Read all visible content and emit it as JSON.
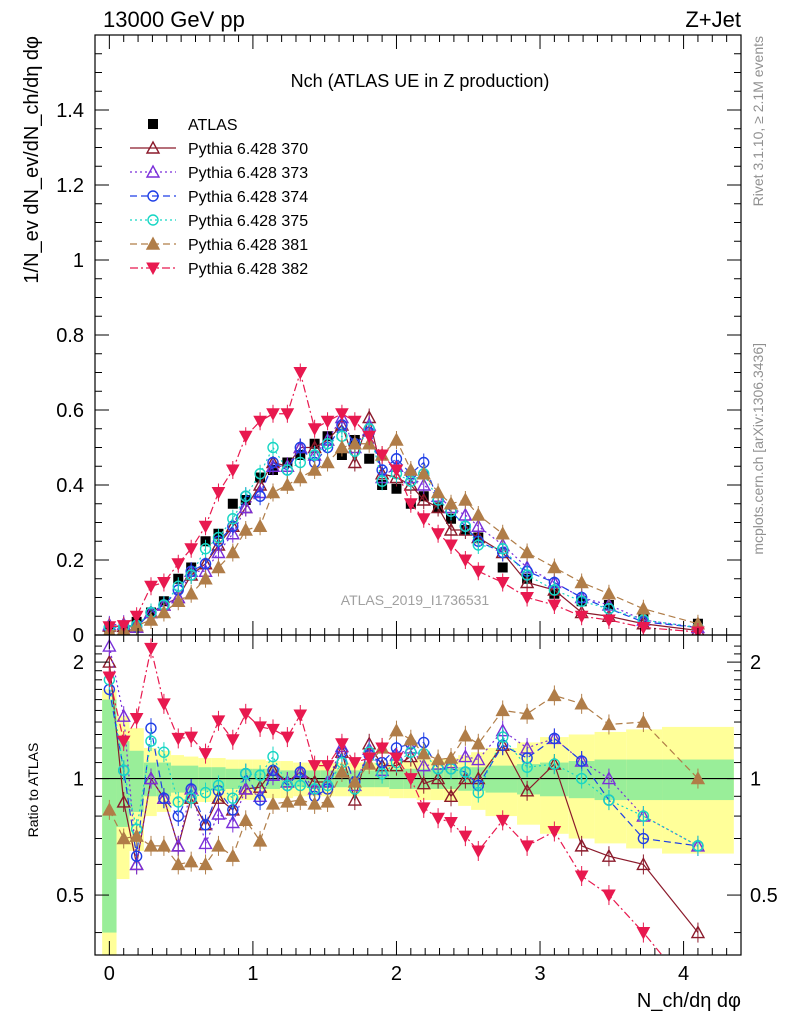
{
  "header": {
    "left": "13000 GeV pp",
    "right": "Z+Jet"
  },
  "side_labels": {
    "rivet": "Rivet 3.1.10, ≥ 2.1M events",
    "mcplots": "mcplots.cern.ch [arXiv:1306.3436]"
  },
  "colors": {
    "band_inner": "#99ee99",
    "band_outer": "#ffff99",
    "axes": "#000000"
  },
  "chart_data": [
    {
      "type": "scatter",
      "panel": "main",
      "title": "Nch (ATLAS UE in Z production)",
      "analysis_label": "ATLAS_2019_I1736531",
      "xlabel": "N_ch/dη dφ",
      "ylabel": "1/N_ev dN_ev/dN_ch/dη dφ",
      "xlim": [
        -0.1,
        4.4
      ],
      "ylim": [
        0,
        1.6
      ],
      "yticks": [
        0,
        0.2,
        0.4,
        0.6,
        0.8,
        1,
        1.2,
        1.4
      ],
      "ytick_labels": [
        "0",
        "0.2",
        "0.4",
        "0.6",
        "0.8",
        "1",
        "1.2",
        "1.4"
      ],
      "legend_position": "top-left",
      "x": [
        0.0,
        0.1,
        0.19,
        0.29,
        0.38,
        0.48,
        0.57,
        0.67,
        0.76,
        0.86,
        0.95,
        1.05,
        1.14,
        1.24,
        1.33,
        1.43,
        1.52,
        1.62,
        1.71,
        1.81,
        1.9,
        2.0,
        2.1,
        2.19,
        2.29,
        2.38,
        2.48,
        2.57,
        2.74,
        2.91,
        3.1,
        3.29,
        3.48,
        3.72,
        4.1
      ],
      "series": [
        {
          "name": "ATLAS",
          "color": "#000000",
          "marker": "square-filled",
          "line": "none",
          "values": [
            0.012,
            0.02,
            0.035,
            0.06,
            0.09,
            0.15,
            0.18,
            0.25,
            0.27,
            0.35,
            0.36,
            0.42,
            0.44,
            0.46,
            0.48,
            0.51,
            0.53,
            0.48,
            0.52,
            0.47,
            0.4,
            0.39,
            0.35,
            0.37,
            0.34,
            0.31,
            0.28,
            0.26,
            0.18,
            0.15,
            0.11,
            0.09,
            0.08,
            0.05,
            0.03
          ]
        },
        {
          "name": "Pythia 6.428 370",
          "color": "#8b1a2b",
          "marker": "triangle-open",
          "line": "solid",
          "values": [
            0.024,
            0.023,
            0.021,
            0.06,
            0.08,
            0.1,
            0.16,
            0.19,
            0.24,
            0.29,
            0.34,
            0.4,
            0.46,
            0.45,
            0.5,
            0.5,
            0.52,
            0.56,
            0.46,
            0.58,
            0.43,
            0.42,
            0.4,
            0.36,
            0.34,
            0.28,
            0.28,
            0.26,
            0.22,
            0.14,
            0.12,
            0.06,
            0.05,
            0.03,
            0.012
          ]
        },
        {
          "name": "Pythia 6.428 373",
          "color": "#7a2fd9",
          "marker": "triangle-open",
          "line": "dotted",
          "values": [
            0.027,
            0.029,
            0.021,
            0.06,
            0.08,
            0.1,
            0.17,
            0.17,
            0.22,
            0.27,
            0.34,
            0.38,
            0.45,
            0.45,
            0.5,
            0.48,
            0.52,
            0.58,
            0.5,
            0.56,
            0.42,
            0.45,
            0.42,
            0.4,
            0.37,
            0.34,
            0.32,
            0.29,
            0.24,
            0.18,
            0.14,
            0.1,
            0.08,
            0.04,
            0.02
          ]
        },
        {
          "name": "Pythia 6.428 374",
          "color": "#1f3fe6",
          "marker": "circle-open",
          "line": "dashed",
          "values": [
            0.02,
            0.021,
            0.022,
            0.06,
            0.08,
            0.12,
            0.17,
            0.19,
            0.25,
            0.29,
            0.37,
            0.37,
            0.46,
            0.44,
            0.5,
            0.46,
            0.5,
            0.56,
            0.51,
            0.54,
            0.44,
            0.47,
            0.43,
            0.46,
            0.36,
            0.33,
            0.29,
            0.25,
            0.22,
            0.17,
            0.14,
            0.1,
            0.07,
            0.035,
            0.02
          ]
        },
        {
          "name": "Pythia 6.428 375",
          "color": "#17d6c4",
          "marker": "circle-open",
          "line": "dotted",
          "values": [
            0.022,
            0.021,
            0.026,
            0.06,
            0.08,
            0.13,
            0.16,
            0.23,
            0.26,
            0.31,
            0.37,
            0.43,
            0.5,
            0.44,
            0.46,
            0.48,
            0.51,
            0.53,
            0.49,
            0.55,
            0.41,
            0.43,
            0.41,
            0.43,
            0.36,
            0.33,
            0.29,
            0.24,
            0.23,
            0.16,
            0.12,
            0.09,
            0.07,
            0.04,
            0.02
          ]
        },
        {
          "name": "Pythia 6.428 381",
          "color": "#b07d48",
          "marker": "triangle-filled",
          "line": "dashed",
          "values": [
            0.01,
            0.014,
            0.025,
            0.04,
            0.06,
            0.09,
            0.11,
            0.15,
            0.18,
            0.22,
            0.28,
            0.29,
            0.38,
            0.4,
            0.42,
            0.44,
            0.46,
            0.5,
            0.51,
            0.51,
            0.48,
            0.52,
            0.44,
            0.43,
            0.38,
            0.35,
            0.36,
            0.32,
            0.27,
            0.22,
            0.18,
            0.14,
            0.11,
            0.07,
            0.03
          ]
        },
        {
          "name": "Pythia 6.428 382",
          "color": "#e8194f",
          "marker": "triangle-down-filled",
          "line": "dashdot",
          "values": [
            0.022,
            0.025,
            0.05,
            0.13,
            0.14,
            0.19,
            0.23,
            0.29,
            0.38,
            0.44,
            0.53,
            0.57,
            0.59,
            0.59,
            0.7,
            0.55,
            0.57,
            0.59,
            0.57,
            0.53,
            0.48,
            0.44,
            0.35,
            0.31,
            0.27,
            0.24,
            0.2,
            0.17,
            0.14,
            0.1,
            0.08,
            0.05,
            0.04,
            0.02,
            0.008
          ]
        }
      ]
    },
    {
      "type": "line",
      "panel": "ratio",
      "ylabel": "Ratio to ATLAS",
      "xlabel": "N_ch/dη dφ",
      "xlim": [
        -0.1,
        4.4
      ],
      "ylim": [
        0.35,
        2.35
      ],
      "log_y": true,
      "xticks": [
        0,
        1,
        2,
        3,
        4
      ],
      "xtick_labels": [
        "0",
        "1",
        "2",
        "3",
        "4"
      ],
      "yticks": [
        0.5,
        1,
        2
      ],
      "ytick_labels": [
        "0.5",
        "1",
        "2"
      ],
      "band_edges": [
        -0.05,
        0.05,
        0.14,
        0.24,
        0.33,
        0.43,
        0.52,
        0.62,
        0.71,
        0.81,
        0.9,
        1.0,
        1.09,
        1.19,
        1.28,
        1.38,
        1.47,
        1.57,
        1.66,
        1.76,
        1.85,
        1.95,
        2.05,
        2.14,
        2.24,
        2.33,
        2.43,
        2.52,
        2.62,
        2.84,
        3.0,
        3.2,
        3.38,
        3.6,
        3.85,
        4.35
      ],
      "band_inner": [
        0.6,
        0.25,
        0.18,
        0.1,
        0.1,
        0.08,
        0.08,
        0.07,
        0.07,
        0.06,
        0.06,
        0.06,
        0.06,
        0.05,
        0.05,
        0.05,
        0.05,
        0.05,
        0.05,
        0.05,
        0.05,
        0.06,
        0.06,
        0.06,
        0.06,
        0.06,
        0.07,
        0.07,
        0.08,
        0.09,
        0.1,
        0.11,
        0.12,
        0.12,
        0.12
      ],
      "band_outer": [
        0.7,
        0.45,
        0.35,
        0.2,
        0.18,
        0.15,
        0.14,
        0.13,
        0.13,
        0.12,
        0.12,
        0.12,
        0.11,
        0.11,
        0.1,
        0.1,
        0.1,
        0.1,
        0.1,
        0.1,
        0.1,
        0.11,
        0.11,
        0.12,
        0.12,
        0.13,
        0.15,
        0.17,
        0.2,
        0.24,
        0.28,
        0.3,
        0.32,
        0.34,
        0.36
      ],
      "series": [
        {
          "name": "Pythia 6.428 370",
          "values": [
            2.0,
            0.87,
            0.6,
            1.0,
            0.89,
            0.67,
            0.89,
            0.76,
            0.89,
            0.83,
            0.94,
            0.95,
            1.05,
            0.98,
            1.04,
            0.98,
            0.98,
            1.17,
            0.88,
            1.23,
            1.08,
            1.08,
            1.14,
            0.97,
            1.0,
            0.9,
            1.0,
            1.0,
            1.22,
            0.93,
            1.09,
            0.67,
            0.63,
            0.6,
            0.4
          ]
        },
        {
          "name": "Pythia 6.428 373",
          "values": [
            2.2,
            1.45,
            0.6,
            1.0,
            0.89,
            0.67,
            0.94,
            0.68,
            0.81,
            0.77,
            0.94,
            0.9,
            1.02,
            0.98,
            1.04,
            0.94,
            0.98,
            1.21,
            0.96,
            1.19,
            1.05,
            1.15,
            1.2,
            1.08,
            1.09,
            1.1,
            1.14,
            1.12,
            1.33,
            1.2,
            1.27,
            1.11,
            1.0,
            0.8,
            0.67
          ]
        },
        {
          "name": "Pythia 6.428 374",
          "values": [
            1.7,
            1.05,
            0.63,
            1.35,
            0.89,
            0.8,
            0.94,
            0.76,
            0.93,
            0.83,
            1.03,
            0.88,
            1.05,
            0.96,
            1.04,
            0.9,
            0.94,
            1.17,
            0.98,
            1.15,
            1.1,
            1.2,
            1.23,
            1.24,
            1.06,
            1.06,
            1.04,
            0.96,
            1.22,
            1.13,
            1.27,
            1.11,
            0.88,
            0.7,
            0.67
          ]
        },
        {
          "name": "Pythia 6.428 375",
          "values": [
            1.8,
            1.05,
            0.74,
            1.25,
            1.17,
            0.87,
            0.89,
            0.92,
            0.96,
            0.89,
            1.03,
            1.02,
            1.14,
            0.96,
            0.96,
            0.94,
            0.96,
            1.1,
            0.94,
            1.17,
            1.03,
            1.1,
            1.17,
            1.16,
            1.06,
            1.06,
            1.04,
            0.92,
            1.28,
            1.07,
            1.09,
            1.0,
            0.88,
            0.8,
            0.67
          ]
        },
        {
          "name": "Pythia 6.428 381",
          "values": [
            0.83,
            0.7,
            0.71,
            0.67,
            0.67,
            0.6,
            0.61,
            0.6,
            0.67,
            0.63,
            0.78,
            0.69,
            0.86,
            0.87,
            0.88,
            0.86,
            0.87,
            1.04,
            0.98,
            1.09,
            1.2,
            1.33,
            1.26,
            1.16,
            1.12,
            1.13,
            1.29,
            1.23,
            1.5,
            1.47,
            1.64,
            1.56,
            1.38,
            1.4,
            1.0
          ]
        },
        {
          "name": "Pythia 6.428 382",
          "values": [
            1.83,
            1.25,
            1.43,
            2.17,
            1.56,
            1.27,
            1.28,
            1.16,
            1.41,
            1.26,
            1.47,
            1.36,
            1.34,
            1.28,
            1.46,
            1.08,
            1.08,
            1.23,
            1.1,
            1.13,
            1.2,
            1.13,
            1.0,
            0.84,
            0.79,
            0.77,
            0.71,
            0.65,
            0.78,
            0.67,
            0.73,
            0.56,
            0.5,
            0.4,
            0.27
          ]
        }
      ]
    }
  ]
}
